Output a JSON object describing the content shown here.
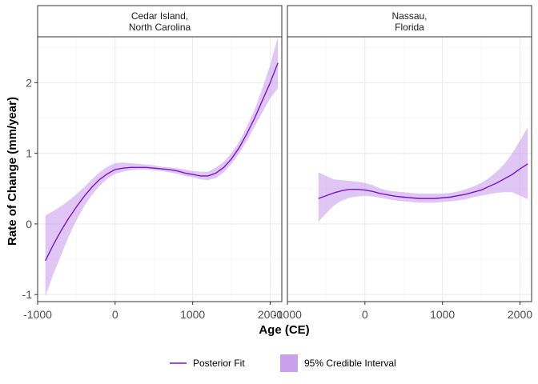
{
  "chart_data": {
    "type": "line",
    "xlabel": "Age (CE)",
    "ylabel": "Rate of Change (mm/year)",
    "xlim": [
      -1000,
      2150
    ],
    "ylim": [
      -1.1,
      2.65
    ],
    "x_ticks": [
      -1000,
      0,
      1000,
      2000
    ],
    "x_tick_labels": [
      "-1000",
      "0",
      "1000",
      "2000"
    ],
    "y_ticks": [
      -1,
      0,
      1,
      2
    ],
    "y_tick_labels": [
      "-1",
      "0",
      "1",
      "2"
    ],
    "grid": true,
    "legend": {
      "position": "bottom",
      "line_label": "Posterior Fit",
      "band_label": "95% Credible Interval"
    },
    "colors": {
      "line": "#7b14c9",
      "band": "#c9a0ec"
    },
    "panels": [
      {
        "title_lines": [
          "Cedar Island,",
          "North Carolina"
        ],
        "x": [
          -900,
          -800,
          -700,
          -600,
          -500,
          -400,
          -300,
          -200,
          -100,
          0,
          100,
          200,
          300,
          400,
          500,
          600,
          700,
          800,
          900,
          1000,
          1100,
          1200,
          1300,
          1400,
          1500,
          1600,
          1700,
          1800,
          1900,
          2000,
          2100
        ],
        "fit": [
          -0.52,
          -0.3,
          -0.1,
          0.08,
          0.24,
          0.39,
          0.52,
          0.63,
          0.71,
          0.77,
          0.79,
          0.8,
          0.8,
          0.8,
          0.79,
          0.78,
          0.77,
          0.75,
          0.72,
          0.7,
          0.68,
          0.68,
          0.72,
          0.8,
          0.92,
          1.08,
          1.28,
          1.5,
          1.75,
          2.0,
          2.28
        ],
        "lower": [
          -1.02,
          -0.72,
          -0.45,
          -0.18,
          0.05,
          0.25,
          0.41,
          0.54,
          0.64,
          0.71,
          0.74,
          0.76,
          0.77,
          0.77,
          0.76,
          0.75,
          0.73,
          0.71,
          0.68,
          0.66,
          0.63,
          0.62,
          0.65,
          0.73,
          0.85,
          1.0,
          1.18,
          1.38,
          1.58,
          1.78,
          1.92
        ],
        "upper": [
          0.12,
          0.18,
          0.25,
          0.33,
          0.42,
          0.52,
          0.63,
          0.73,
          0.81,
          0.86,
          0.87,
          0.86,
          0.85,
          0.84,
          0.83,
          0.81,
          0.8,
          0.79,
          0.77,
          0.75,
          0.74,
          0.74,
          0.8,
          0.88,
          1.0,
          1.16,
          1.38,
          1.62,
          1.92,
          2.25,
          2.65
        ]
      },
      {
        "title_lines": [
          "Nassau,",
          "Florida"
        ],
        "x": [
          -600,
          -500,
          -400,
          -300,
          -200,
          -100,
          0,
          100,
          200,
          300,
          400,
          500,
          600,
          700,
          800,
          900,
          1000,
          1100,
          1200,
          1300,
          1400,
          1500,
          1600,
          1700,
          1800,
          1900,
          2000,
          2100
        ],
        "fit": [
          0.36,
          0.4,
          0.44,
          0.47,
          0.49,
          0.49,
          0.48,
          0.46,
          0.43,
          0.41,
          0.39,
          0.38,
          0.37,
          0.36,
          0.36,
          0.36,
          0.37,
          0.38,
          0.4,
          0.42,
          0.45,
          0.48,
          0.53,
          0.58,
          0.64,
          0.7,
          0.78,
          0.85
        ],
        "lower": [
          0.03,
          0.15,
          0.26,
          0.33,
          0.37,
          0.39,
          0.4,
          0.39,
          0.37,
          0.35,
          0.33,
          0.32,
          0.31,
          0.3,
          0.3,
          0.3,
          0.31,
          0.32,
          0.33,
          0.35,
          0.38,
          0.4,
          0.42,
          0.44,
          0.45,
          0.45,
          0.4,
          0.35
        ],
        "upper": [
          0.73,
          0.68,
          0.63,
          0.62,
          0.61,
          0.6,
          0.58,
          0.55,
          0.5,
          0.47,
          0.46,
          0.45,
          0.44,
          0.43,
          0.43,
          0.43,
          0.43,
          0.44,
          0.46,
          0.49,
          0.53,
          0.58,
          0.65,
          0.74,
          0.85,
          1.0,
          1.18,
          1.37
        ]
      }
    ]
  }
}
